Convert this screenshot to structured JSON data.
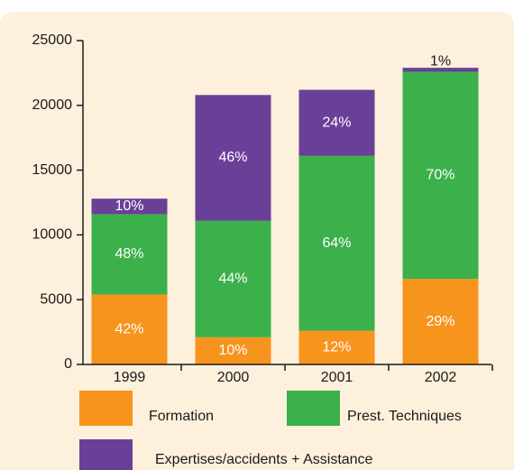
{
  "chart_data": {
    "type": "stacked_bar",
    "categories": [
      "1999",
      "2000",
      "2001",
      "2002"
    ],
    "series": [
      {
        "name": "Formation",
        "color": "#f7941d",
        "values": [
          5400,
          2100,
          2600,
          6600
        ],
        "share_labels": [
          "42%",
          "10%",
          "12%",
          "29%"
        ]
      },
      {
        "name": "Prest. Techniques",
        "color": "#3cb04a",
        "values": [
          6200,
          9000,
          13500,
          16000
        ],
        "share_labels": [
          "48%",
          "44%",
          "64%",
          "70%"
        ]
      },
      {
        "name": "Expertises/accidents + Assistance",
        "color": "#6a3f98",
        "values": [
          1200,
          9700,
          5100,
          300
        ],
        "share_labels": [
          "10%",
          "46%",
          "24%",
          "1%"
        ]
      }
    ],
    "ylim": [
      0,
      25000
    ],
    "yticks": [
      0,
      5000,
      10000,
      15000,
      20000,
      25000
    ]
  }
}
